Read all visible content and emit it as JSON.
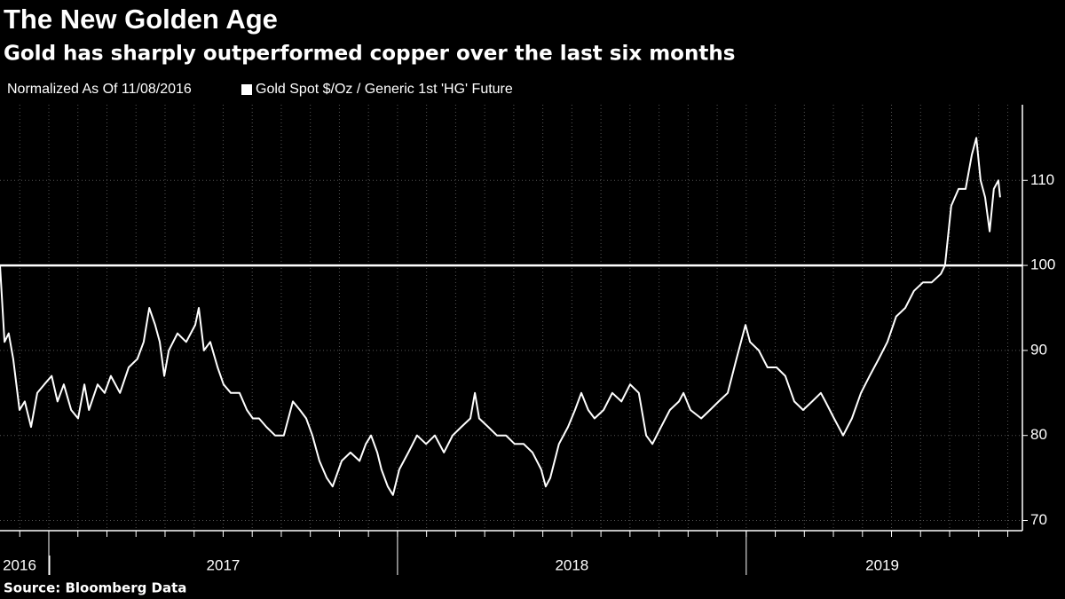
{
  "chart_data": {
    "type": "line",
    "title": "The New Golden Age",
    "subtitle": "Gold has sharply outperformed copper over the last six months",
    "note": "Normalized As Of 11/08/2016",
    "source": "Source: Bloomberg Data",
    "reference_line": 100,
    "xlim": [
      2016.86,
      2019.792
    ],
    "xticks": [
      2017,
      2018,
      2019
    ],
    "xlabels": [
      {
        "value": 2016.916,
        "label": "2016"
      },
      {
        "value": 2017.5,
        "label": "2017"
      },
      {
        "value": 2018.5,
        "label": "2018"
      },
      {
        "value": 2019.39,
        "label": "2019"
      }
    ],
    "ylim": [
      68.8,
      118.9
    ],
    "yticks": [
      70,
      80,
      90,
      100,
      110
    ],
    "grid": true,
    "series": [
      {
        "name": "Gold Spot $/Oz / Generic 1st 'HG' Future",
        "color": "#ffffff",
        "x": [
          2016.86,
          2016.873,
          2016.885,
          2016.898,
          2016.916,
          2016.931,
          2016.949,
          2016.967,
          2016.987,
          2017.008,
          2017.025,
          2017.043,
          2017.064,
          2017.084,
          2017.102,
          2017.115,
          2017.14,
          2017.16,
          2017.178,
          2017.204,
          2017.229,
          2017.254,
          2017.272,
          2017.288,
          2017.305,
          2017.318,
          2017.331,
          2017.344,
          2017.369,
          2017.394,
          2017.42,
          2017.43,
          2017.445,
          2017.463,
          2017.484,
          2017.501,
          2017.522,
          2017.547,
          2017.568,
          2017.585,
          2017.603,
          2017.624,
          2017.649,
          2017.674,
          2017.7,
          2017.72,
          2017.738,
          2017.756,
          2017.776,
          2017.797,
          2017.814,
          2017.84,
          2017.865,
          2017.891,
          2017.909,
          2017.924,
          2017.942,
          2017.954,
          2017.972,
          2017.987,
          2018.005,
          2018.031,
          2018.056,
          2018.082,
          2018.107,
          2018.133,
          2018.158,
          2018.183,
          2018.209,
          2018.222,
          2018.234,
          2018.26,
          2018.285,
          2018.311,
          2018.336,
          2018.362,
          2018.387,
          2018.412,
          2018.425,
          2018.438,
          2018.463,
          2018.489,
          2018.509,
          2018.527,
          2018.547,
          2018.565,
          2018.591,
          2018.616,
          2018.642,
          2018.667,
          2018.692,
          2018.713,
          2018.731,
          2018.756,
          2018.781,
          2018.807,
          2018.82,
          2018.84,
          2018.871,
          2018.896,
          2018.921,
          2018.947,
          2018.972,
          2018.998,
          2019.011,
          2019.036,
          2019.061,
          2019.087,
          2019.112,
          2019.138,
          2019.163,
          2019.189,
          2019.214,
          2019.227,
          2019.252,
          2019.278,
          2019.303,
          2019.329,
          2019.354,
          2019.38,
          2019.405,
          2019.43,
          2019.456,
          2019.481,
          2019.507,
          2019.532,
          2019.558,
          2019.57,
          2019.588,
          2019.609,
          2019.629,
          2019.647,
          2019.66,
          2019.672,
          2019.685,
          2019.698,
          2019.71,
          2019.723,
          2019.728
        ],
        "values": [
          100,
          91,
          92,
          89,
          83,
          84,
          81,
          85,
          86,
          87,
          84,
          86,
          83,
          82,
          86,
          83,
          86,
          85,
          87,
          85,
          88,
          89,
          91,
          95,
          93,
          91,
          87,
          90,
          92,
          91,
          93,
          95,
          90,
          91,
          88,
          86,
          85,
          85,
          83,
          82,
          82,
          81,
          80,
          80,
          84,
          83,
          82,
          80,
          77,
          75,
          74,
          77,
          78,
          77,
          79,
          80,
          78,
          76,
          74,
          73,
          76,
          78,
          80,
          79,
          80,
          78,
          80,
          81,
          82,
          85,
          82,
          81,
          80,
          80,
          79,
          79,
          78,
          76,
          74,
          75,
          79,
          81,
          83,
          85,
          83,
          82,
          83,
          85,
          84,
          86,
          85,
          80,
          79,
          81,
          83,
          84,
          85,
          83,
          82,
          83,
          84,
          85,
          89,
          93,
          91,
          90,
          88,
          88,
          87,
          84,
          83,
          84,
          85,
          84,
          82,
          80,
          82,
          85,
          87,
          89,
          91,
          94,
          95,
          97,
          98,
          98,
          99,
          100,
          107,
          109,
          109,
          113,
          115,
          110,
          108,
          104,
          109,
          110,
          108
        ]
      }
    ]
  }
}
